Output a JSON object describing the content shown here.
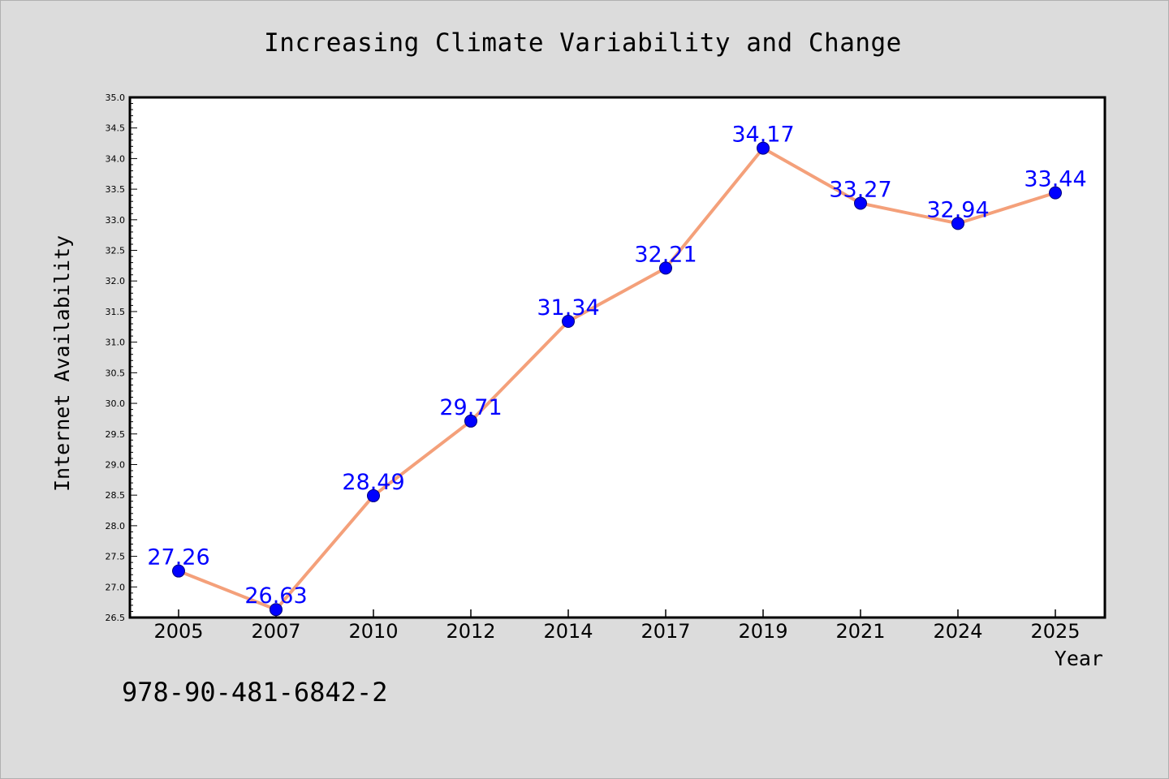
{
  "chart_data": {
    "type": "line",
    "title": "Increasing Climate Variability and Change",
    "xlabel": "Year",
    "ylabel": "Internet Availability",
    "categories": [
      "2005",
      "2007",
      "2010",
      "2012",
      "2014",
      "2017",
      "2019",
      "2021",
      "2024",
      "2025"
    ],
    "values": [
      27.26,
      26.63,
      28.49,
      29.71,
      31.34,
      32.21,
      34.17,
      33.27,
      32.94,
      33.44
    ],
    "data_labels": [
      "27.26",
      "26.63",
      "28.49",
      "29.71",
      "31.34",
      "32.21",
      "34.17",
      "33.27",
      "32.94",
      "33.44"
    ],
    "ylim": [
      26.5,
      35.0
    ],
    "yticks": [
      "26.5",
      "27.0",
      "27.5",
      "28.0",
      "28.5",
      "29.0",
      "29.5",
      "30.0",
      "30.5",
      "31.0",
      "31.5",
      "32.0",
      "32.5",
      "33.0",
      "33.5",
      "34.0",
      "34.5",
      "35.0"
    ],
    "grid": false,
    "legend": "none",
    "colors": {
      "line": "#f4a07a",
      "marker": "#0000ff",
      "labels": "#0000ff",
      "background": "#dcdcdc",
      "plot_background": "#ffffff"
    }
  },
  "footnote": "978-90-481-6842-2"
}
